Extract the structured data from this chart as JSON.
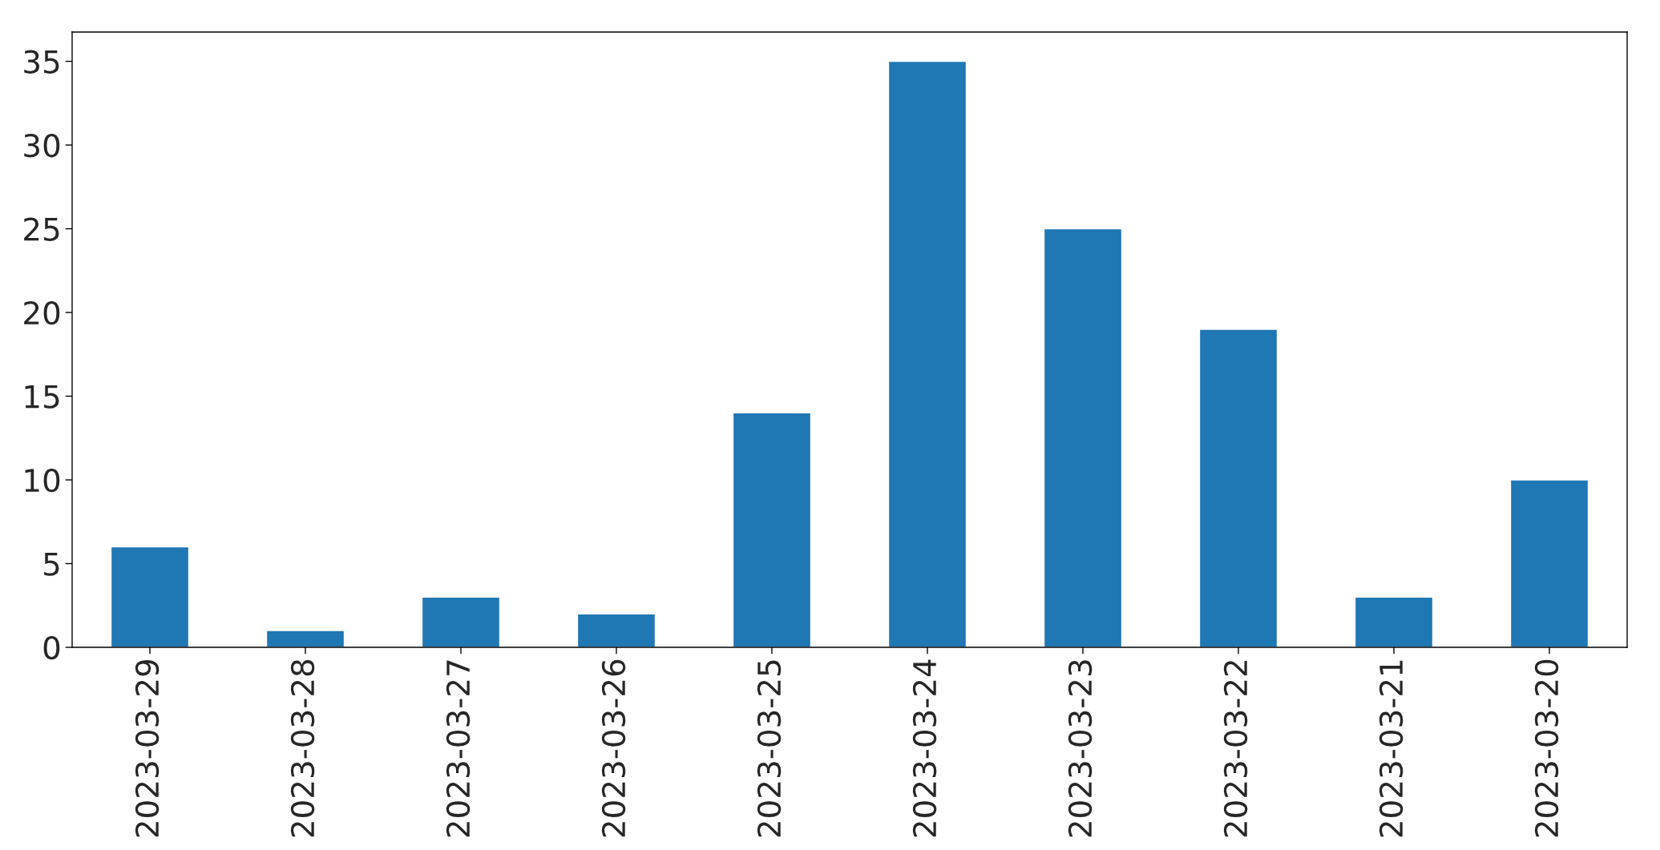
{
  "chart_data": {
    "type": "bar",
    "categories": [
      "2023-03-29",
      "2023-03-28",
      "2023-03-27",
      "2023-03-26",
      "2023-03-25",
      "2023-03-24",
      "2023-03-23",
      "2023-03-22",
      "2023-03-21",
      "2023-03-20"
    ],
    "values": [
      6,
      1,
      3,
      2,
      14,
      35,
      25,
      19,
      3,
      10
    ],
    "color": "#1f77b4",
    "ylim": [
      0,
      36.75
    ],
    "yticks": [
      0,
      5,
      10,
      15,
      20,
      25,
      30,
      35
    ],
    "grid": false,
    "legend": false
  }
}
